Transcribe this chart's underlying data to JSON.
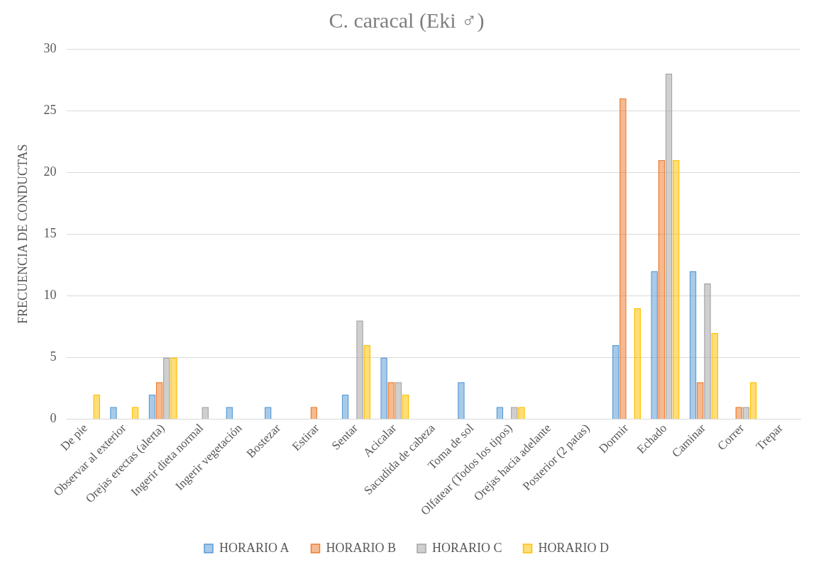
{
  "chart_data": {
    "type": "bar",
    "title": "C. caracal (Eki ♂)",
    "ylabel": "FRECUENCIA DE CONDUCTAS",
    "categories": [
      "De pie",
      "Observar al exterior",
      "Orejas erectas (alerta)",
      "Ingerir dieta normal",
      "Ingerir vegetación",
      "Bostezar",
      "Estirar",
      "Sentar",
      "Acicalar",
      "Sacudida de cabeza",
      "Toma de sol",
      "Olfatear (Todos los tipos)",
      "Orejas hacia adelante",
      "Posterior (2 patas)",
      "Dormir",
      "Echado",
      "Caminar",
      "Correr",
      "Trepar"
    ],
    "series": [
      {
        "name": "HORARIO A",
        "color": "#5b9bd5",
        "values": [
          null,
          1,
          2,
          null,
          1,
          1,
          null,
          2,
          5,
          null,
          3,
          1,
          null,
          null,
          6,
          12,
          12,
          null,
          null
        ]
      },
      {
        "name": "HORARIO B",
        "color": "#ed7d31",
        "values": [
          null,
          null,
          3,
          null,
          null,
          null,
          1,
          null,
          3,
          null,
          null,
          null,
          null,
          null,
          26,
          21,
          3,
          1,
          null
        ]
      },
      {
        "name": "HORARIO C",
        "color": "#a5a5a5",
        "values": [
          null,
          null,
          5,
          1,
          null,
          null,
          null,
          8,
          3,
          null,
          null,
          1,
          null,
          null,
          null,
          28,
          11,
          1,
          null
        ]
      },
      {
        "name": "HORARIO D",
        "color": "#ffc000",
        "values": [
          2,
          1,
          5,
          null,
          null,
          null,
          null,
          6,
          2,
          null,
          null,
          1,
          null,
          null,
          9,
          21,
          7,
          3,
          null
        ]
      }
    ],
    "ylim": [
      0,
      30
    ],
    "yticks": [
      0,
      5,
      10,
      15,
      20,
      25,
      30
    ],
    "grid": "y",
    "legend": "bottom"
  }
}
